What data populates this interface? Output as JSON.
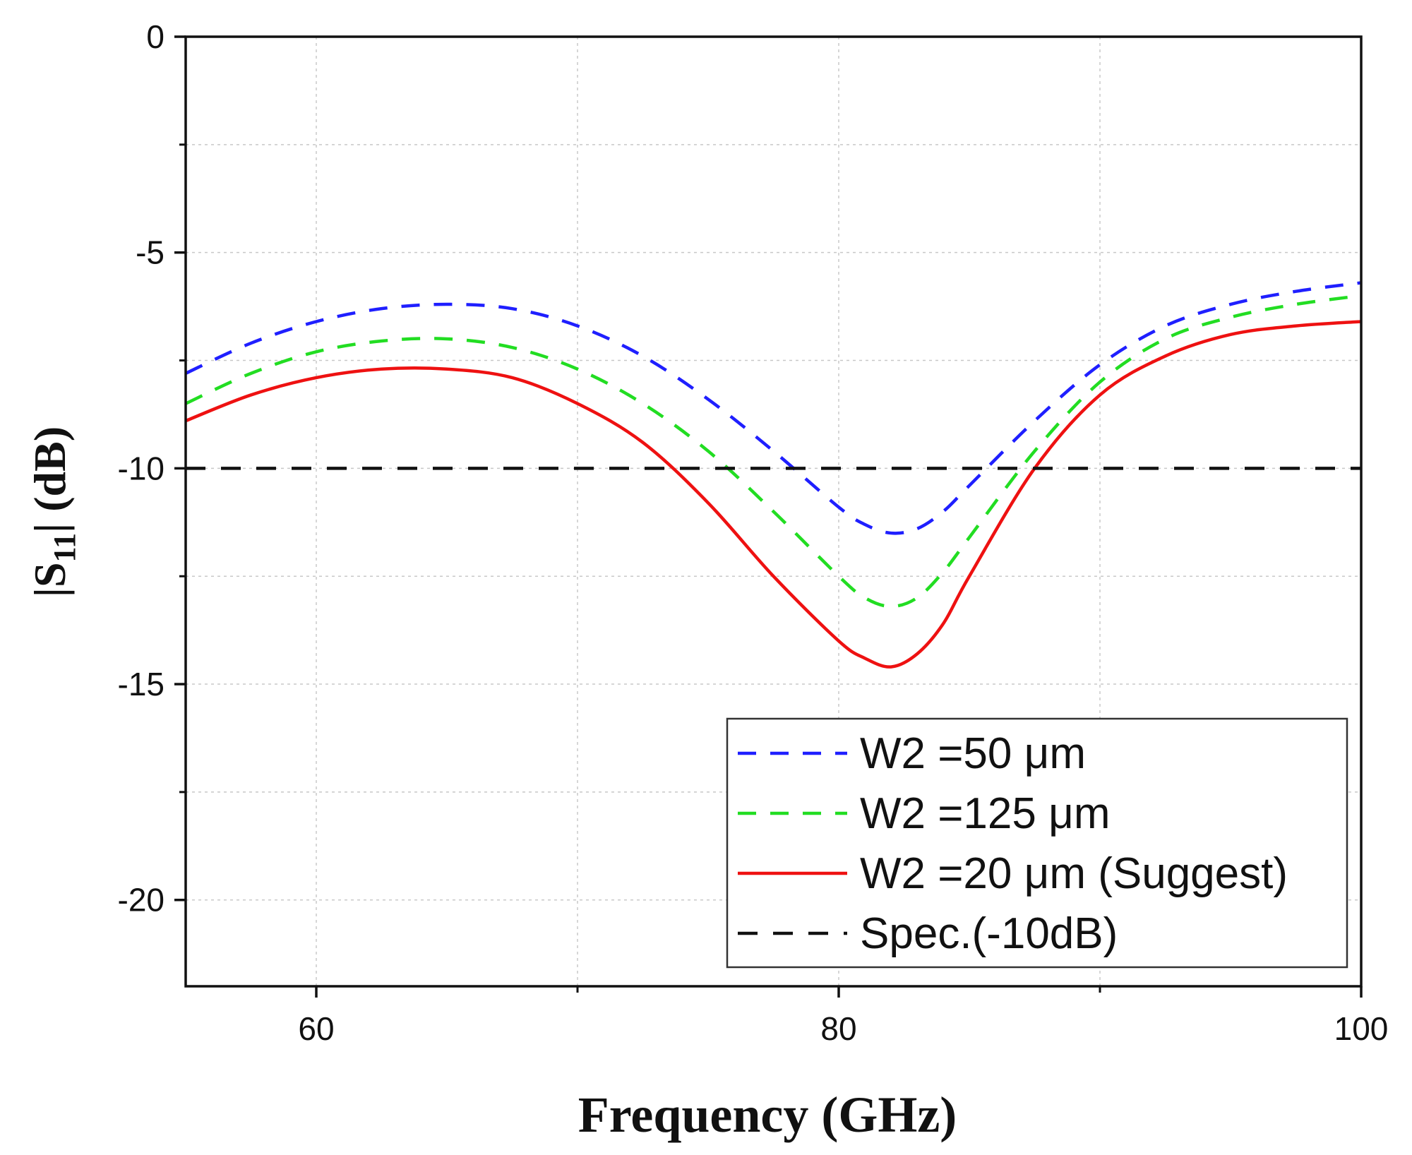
{
  "chart_data": {
    "type": "line",
    "title": "",
    "xlabel": "Frequency (GHz)",
    "ylabel": {
      "prefix": "|S",
      "subscript": "11",
      "suffix": "|  (dB)"
    },
    "xlim": [
      55,
      100
    ],
    "ylim": [
      -22,
      0
    ],
    "x_ticks": [
      60,
      80,
      100
    ],
    "y_ticks": [
      0,
      -5,
      -10,
      -15,
      -20
    ],
    "x_tick_labels": [
      "60",
      "80",
      "100"
    ],
    "y_tick_labels": [
      "0",
      "-5",
      "-10",
      "-15",
      "-20"
    ],
    "grid": true,
    "legend_position": "bottom-right",
    "series": [
      {
        "name": "W2 =50 μm",
        "color": "#1f1fff",
        "style": "dashed",
        "x": [
          55,
          57.5,
          60,
          62.5,
          65,
          67.5,
          70,
          72.5,
          75,
          77.5,
          80,
          81,
          82,
          83,
          84,
          85,
          87.5,
          90,
          92.5,
          95,
          97.5,
          100
        ],
        "y": [
          -7.8,
          -7.1,
          -6.6,
          -6.3,
          -6.2,
          -6.3,
          -6.7,
          -7.4,
          -8.4,
          -9.6,
          -10.9,
          -11.3,
          -11.5,
          -11.4,
          -11.0,
          -10.4,
          -8.9,
          -7.6,
          -6.7,
          -6.2,
          -5.9,
          -5.7
        ]
      },
      {
        "name": "W2 =125 μm",
        "color": "#22dd22",
        "style": "dashed",
        "x": [
          55,
          57.5,
          60,
          62.5,
          65,
          67.5,
          70,
          72.5,
          75,
          77.5,
          80,
          81,
          82,
          83,
          84,
          85,
          87.5,
          90,
          92.5,
          95,
          97.5,
          100
        ],
        "y": [
          -8.5,
          -7.8,
          -7.3,
          -7.05,
          -7.0,
          -7.2,
          -7.7,
          -8.5,
          -9.6,
          -11.0,
          -12.5,
          -13.0,
          -13.2,
          -13.0,
          -12.4,
          -11.6,
          -9.6,
          -8.0,
          -7.0,
          -6.5,
          -6.2,
          -6.0
        ]
      },
      {
        "name": "W2 =20 μm (Suggest)",
        "color": "#ee1111",
        "style": "solid",
        "x": [
          55,
          57.5,
          60,
          62.5,
          65,
          67.5,
          70,
          72.5,
          75,
          77.5,
          80,
          81,
          82,
          83,
          84,
          85,
          87.5,
          90,
          92.5,
          95,
          97.5,
          100
        ],
        "y": [
          -8.9,
          -8.3,
          -7.9,
          -7.7,
          -7.7,
          -7.9,
          -8.5,
          -9.4,
          -10.8,
          -12.5,
          -14.0,
          -14.4,
          -14.6,
          -14.3,
          -13.6,
          -12.5,
          -10.0,
          -8.3,
          -7.4,
          -6.9,
          -6.7,
          -6.6
        ]
      },
      {
        "name": "Spec.(-10dB)",
        "color": "#111111",
        "style": "dashed",
        "x": [
          55,
          100
        ],
        "y": [
          -10,
          -10
        ]
      }
    ]
  }
}
